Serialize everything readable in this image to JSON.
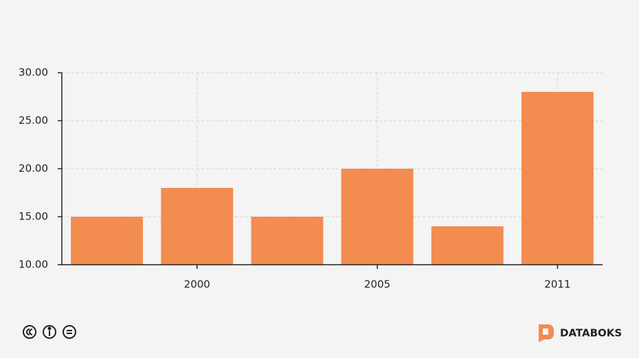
{
  "chart_data": {
    "type": "bar",
    "categories": [
      null,
      "2000",
      null,
      "2005",
      null,
      "2011"
    ],
    "values": [
      15,
      18,
      15,
      20,
      14,
      28
    ],
    "color": "#f28c4f",
    "ylim": [
      10,
      30
    ],
    "yticks": [
      {
        "value": 10,
        "label": "10.00"
      },
      {
        "value": 15,
        "label": "15.00"
      },
      {
        "value": 20,
        "label": "20.00"
      },
      {
        "value": 25,
        "label": "25.00"
      },
      {
        "value": 30,
        "label": "30.00"
      }
    ],
    "grid": true
  },
  "footer": {
    "brand": "DATABOKS"
  }
}
